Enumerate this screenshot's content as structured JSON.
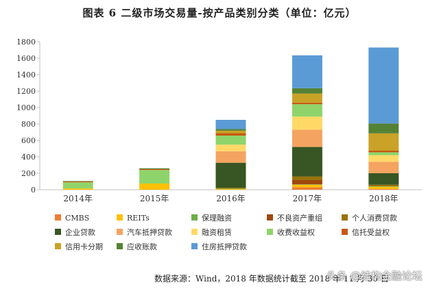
{
  "chart_data": {
    "type": "bar",
    "stacked": true,
    "title": "图表 6  二级市场交易量-按产品类别分类（单位：亿元）",
    "categories": [
      "2014年",
      "2015年",
      "2016年",
      "2017年",
      "2018年"
    ],
    "ylim": [
      0,
      1800
    ],
    "yticks": [
      0,
      200,
      400,
      600,
      800,
      1000,
      1200,
      1400,
      1600,
      1800
    ],
    "grid": false,
    "legend_position": "bottom",
    "series": [
      {
        "name": "CMBS",
        "color": "#ed7d31",
        "values": [
          0,
          0,
          0,
          30,
          10
        ]
      },
      {
        "name": "REITs",
        "color": "#ffc000",
        "values": [
          15,
          75,
          8,
          30,
          25
        ]
      },
      {
        "name": "保理融资",
        "color": "#70ad47",
        "values": [
          0,
          0,
          5,
          5,
          5
        ]
      },
      {
        "name": "不良资产重组",
        "color": "#9e480e",
        "values": [
          0,
          0,
          0,
          55,
          0
        ]
      },
      {
        "name": "个人消费贷款",
        "color": "#997300",
        "values": [
          0,
          0,
          10,
          40,
          20
        ]
      },
      {
        "name": "企业贷款",
        "color": "#375623",
        "values": [
          0,
          0,
          305,
          360,
          140
        ]
      },
      {
        "name": "汽车抵押贷款",
        "color": "#f4a460",
        "values": [
          0,
          0,
          140,
          210,
          140
        ]
      },
      {
        "name": "融资租赁",
        "color": "#ffd966",
        "values": [
          0,
          0,
          80,
          160,
          80
        ]
      },
      {
        "name": "收费收益权",
        "color": "#8fd46a",
        "values": [
          75,
          165,
          110,
          150,
          35
        ]
      },
      {
        "name": "信托受益权",
        "color": "#c55a11",
        "values": [
          10,
          10,
          30,
          20,
          20
        ]
      },
      {
        "name": "信用卡分期",
        "color": "#c9a227",
        "values": [
          0,
          0,
          30,
          110,
          210
        ]
      },
      {
        "name": "应收账款",
        "color": "#548235",
        "values": [
          5,
          10,
          20,
          65,
          120
        ]
      },
      {
        "name": "住房抵押贷款",
        "color": "#5b9bd5",
        "values": [
          0,
          0,
          112,
          400,
          925
        ]
      }
    ]
  },
  "source": "数据来源：Wind，2018 年数据统计截至 2018 年 11 月 30 日",
  "watermark": "头条 @结构金融论坛"
}
